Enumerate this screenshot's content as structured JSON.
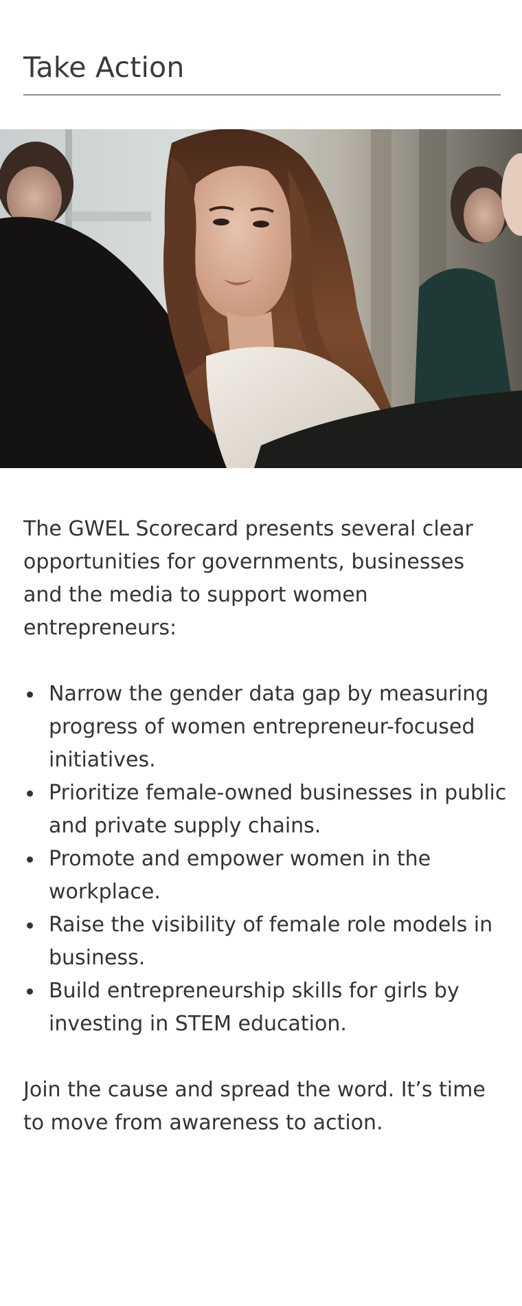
{
  "header": {
    "title": "Take Action"
  },
  "hero": {
    "alt": "Woman in a meeting looking over her shoulder"
  },
  "content": {
    "intro": "The GWEL Scorecard presents several clear opportunities for governments, businesses and the media to support women entrepreneurs:",
    "bullets": [
      "Narrow the gender data gap by measuring progress of women entrepreneur-focused initiatives.",
      "Prioritize female-owned businesses in public and private supply chains.",
      "Promote and empower women in the workplace.",
      "Raise the visibility of female role models in business.",
      "Build entrepreneurship skills for girls by investing in STEM education."
    ],
    "closing": "Join the cause and spread the word. It’s time to move from awareness to action."
  }
}
